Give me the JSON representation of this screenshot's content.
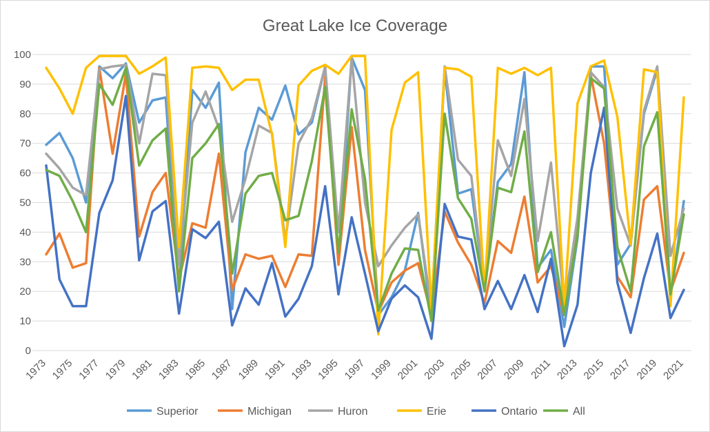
{
  "chart_data": {
    "type": "line",
    "title": "Great Lake Ice Coverage",
    "xlabel": "",
    "ylabel": "",
    "ylim": [
      0,
      100
    ],
    "yticks": [
      0,
      10,
      20,
      30,
      40,
      50,
      60,
      70,
      80,
      90,
      100
    ],
    "grid": true,
    "legend": "bottom",
    "x": [
      1973,
      1974,
      1975,
      1976,
      1977,
      1978,
      1979,
      1980,
      1981,
      1982,
      1983,
      1984,
      1985,
      1986,
      1987,
      1988,
      1989,
      1990,
      1991,
      1992,
      1993,
      1994,
      1995,
      1996,
      1997,
      1998,
      1999,
      2000,
      2001,
      2002,
      2003,
      2004,
      2005,
      2006,
      2007,
      2008,
      2009,
      2010,
      2011,
      2012,
      2013,
      2014,
      2015,
      2016,
      2017,
      2018,
      2019,
      2020,
      2021
    ],
    "xtick_labels": [
      "1973",
      "1975",
      "1977",
      "1979",
      "1981",
      "1983",
      "1985",
      "1987",
      "1989",
      "1991",
      "1993",
      "1995",
      "1997",
      "1999",
      "2001",
      "2003",
      "2005",
      "2007",
      "2009",
      "2011",
      "2013",
      "2015",
      "2017",
      "2019",
      "2021"
    ],
    "series": [
      {
        "name": "Superior",
        "color": "#5b9bd5",
        "values": [
          69.5,
          73.5,
          65,
          50,
          96,
          92,
          97,
          77,
          84.5,
          85.5,
          21,
          88,
          82,
          90.5,
          14,
          67,
          82,
          78,
          89.5,
          73,
          77,
          96,
          30,
          99,
          88,
          12,
          18,
          27,
          46.5,
          11,
          95,
          53,
          54.5,
          21,
          57,
          63,
          94,
          28,
          34,
          8,
          38,
          96,
          96,
          29,
          36,
          80,
          95,
          18,
          50.5
        ]
      },
      {
        "name": "Michigan",
        "color": "#ed7d31",
        "values": [
          32.5,
          39.5,
          28,
          29.5,
          95.5,
          66.5,
          93.5,
          38.5,
          53.5,
          60,
          24,
          43,
          41.5,
          66.5,
          20.5,
          32.5,
          31,
          32,
          21.5,
          32.5,
          32,
          92.5,
          29,
          75.5,
          34,
          13,
          23,
          27,
          29.5,
          12,
          47,
          36.5,
          29,
          16,
          37,
          33,
          52,
          23,
          28.5,
          12,
          40,
          93,
          70,
          25,
          18,
          51,
          55.5,
          20,
          33
        ]
      },
      {
        "name": "Huron",
        "color": "#a5a5a5",
        "values": [
          66.5,
          61.5,
          55,
          52.5,
          95,
          96,
          96.5,
          70,
          93.5,
          93,
          29,
          77,
          87.5,
          75,
          43.5,
          58,
          76,
          73.5,
          37,
          70,
          78.5,
          96,
          40,
          99,
          50,
          28.5,
          35.5,
          41.5,
          46,
          14,
          96,
          64.5,
          59,
          21,
          71,
          59,
          85,
          37,
          63.5,
          15,
          45,
          94,
          89,
          48,
          35.5,
          81,
          96,
          32,
          48
        ]
      },
      {
        "name": "Erie",
        "color": "#ffc000",
        "values": [
          95.5,
          88.5,
          80,
          95.5,
          99.5,
          99.5,
          99.5,
          93.5,
          96,
          99,
          35,
          95.5,
          96,
          95.5,
          88,
          91.5,
          91.5,
          73,
          35,
          89.5,
          94.5,
          96.5,
          93.5,
          99.5,
          99.5,
          5.5,
          74.5,
          90.5,
          94,
          14,
          95.5,
          95,
          92.5,
          20,
          95.5,
          93.5,
          95.5,
          93,
          95.5,
          15,
          83.5,
          96,
          98,
          79,
          36,
          95,
          94,
          15,
          85.5
        ]
      },
      {
        "name": "Ontario",
        "color": "#4472c4",
        "values": [
          62.5,
          24,
          15,
          15,
          46.5,
          57.5,
          86,
          30.5,
          47,
          50.5,
          12.5,
          41,
          38,
          43.5,
          8.5,
          21,
          15.5,
          29.5,
          11.5,
          17.5,
          28.5,
          55.5,
          19,
          45,
          26,
          6.5,
          17.5,
          22,
          18,
          4,
          49.5,
          38.5,
          37.5,
          14,
          23.5,
          14,
          25.5,
          13,
          31,
          1.5,
          15.5,
          60,
          82,
          23,
          6,
          24.5,
          39.5,
          11,
          20.5
        ]
      },
      {
        "name": "All",
        "color": "#70ad47",
        "values": [
          61,
          59,
          50.5,
          40,
          90,
          83,
          95.5,
          62.5,
          71,
          75,
          20,
          65,
          70,
          76.5,
          26,
          53,
          59,
          60,
          44,
          45.5,
          64,
          89,
          33,
          81.5,
          58,
          13.5,
          26,
          34.5,
          34,
          10,
          80,
          51.5,
          44.5,
          20,
          55,
          53.5,
          74,
          26.5,
          40,
          12,
          39,
          92,
          88.5,
          35,
          20,
          69,
          80.5,
          19,
          46
        ]
      }
    ]
  }
}
